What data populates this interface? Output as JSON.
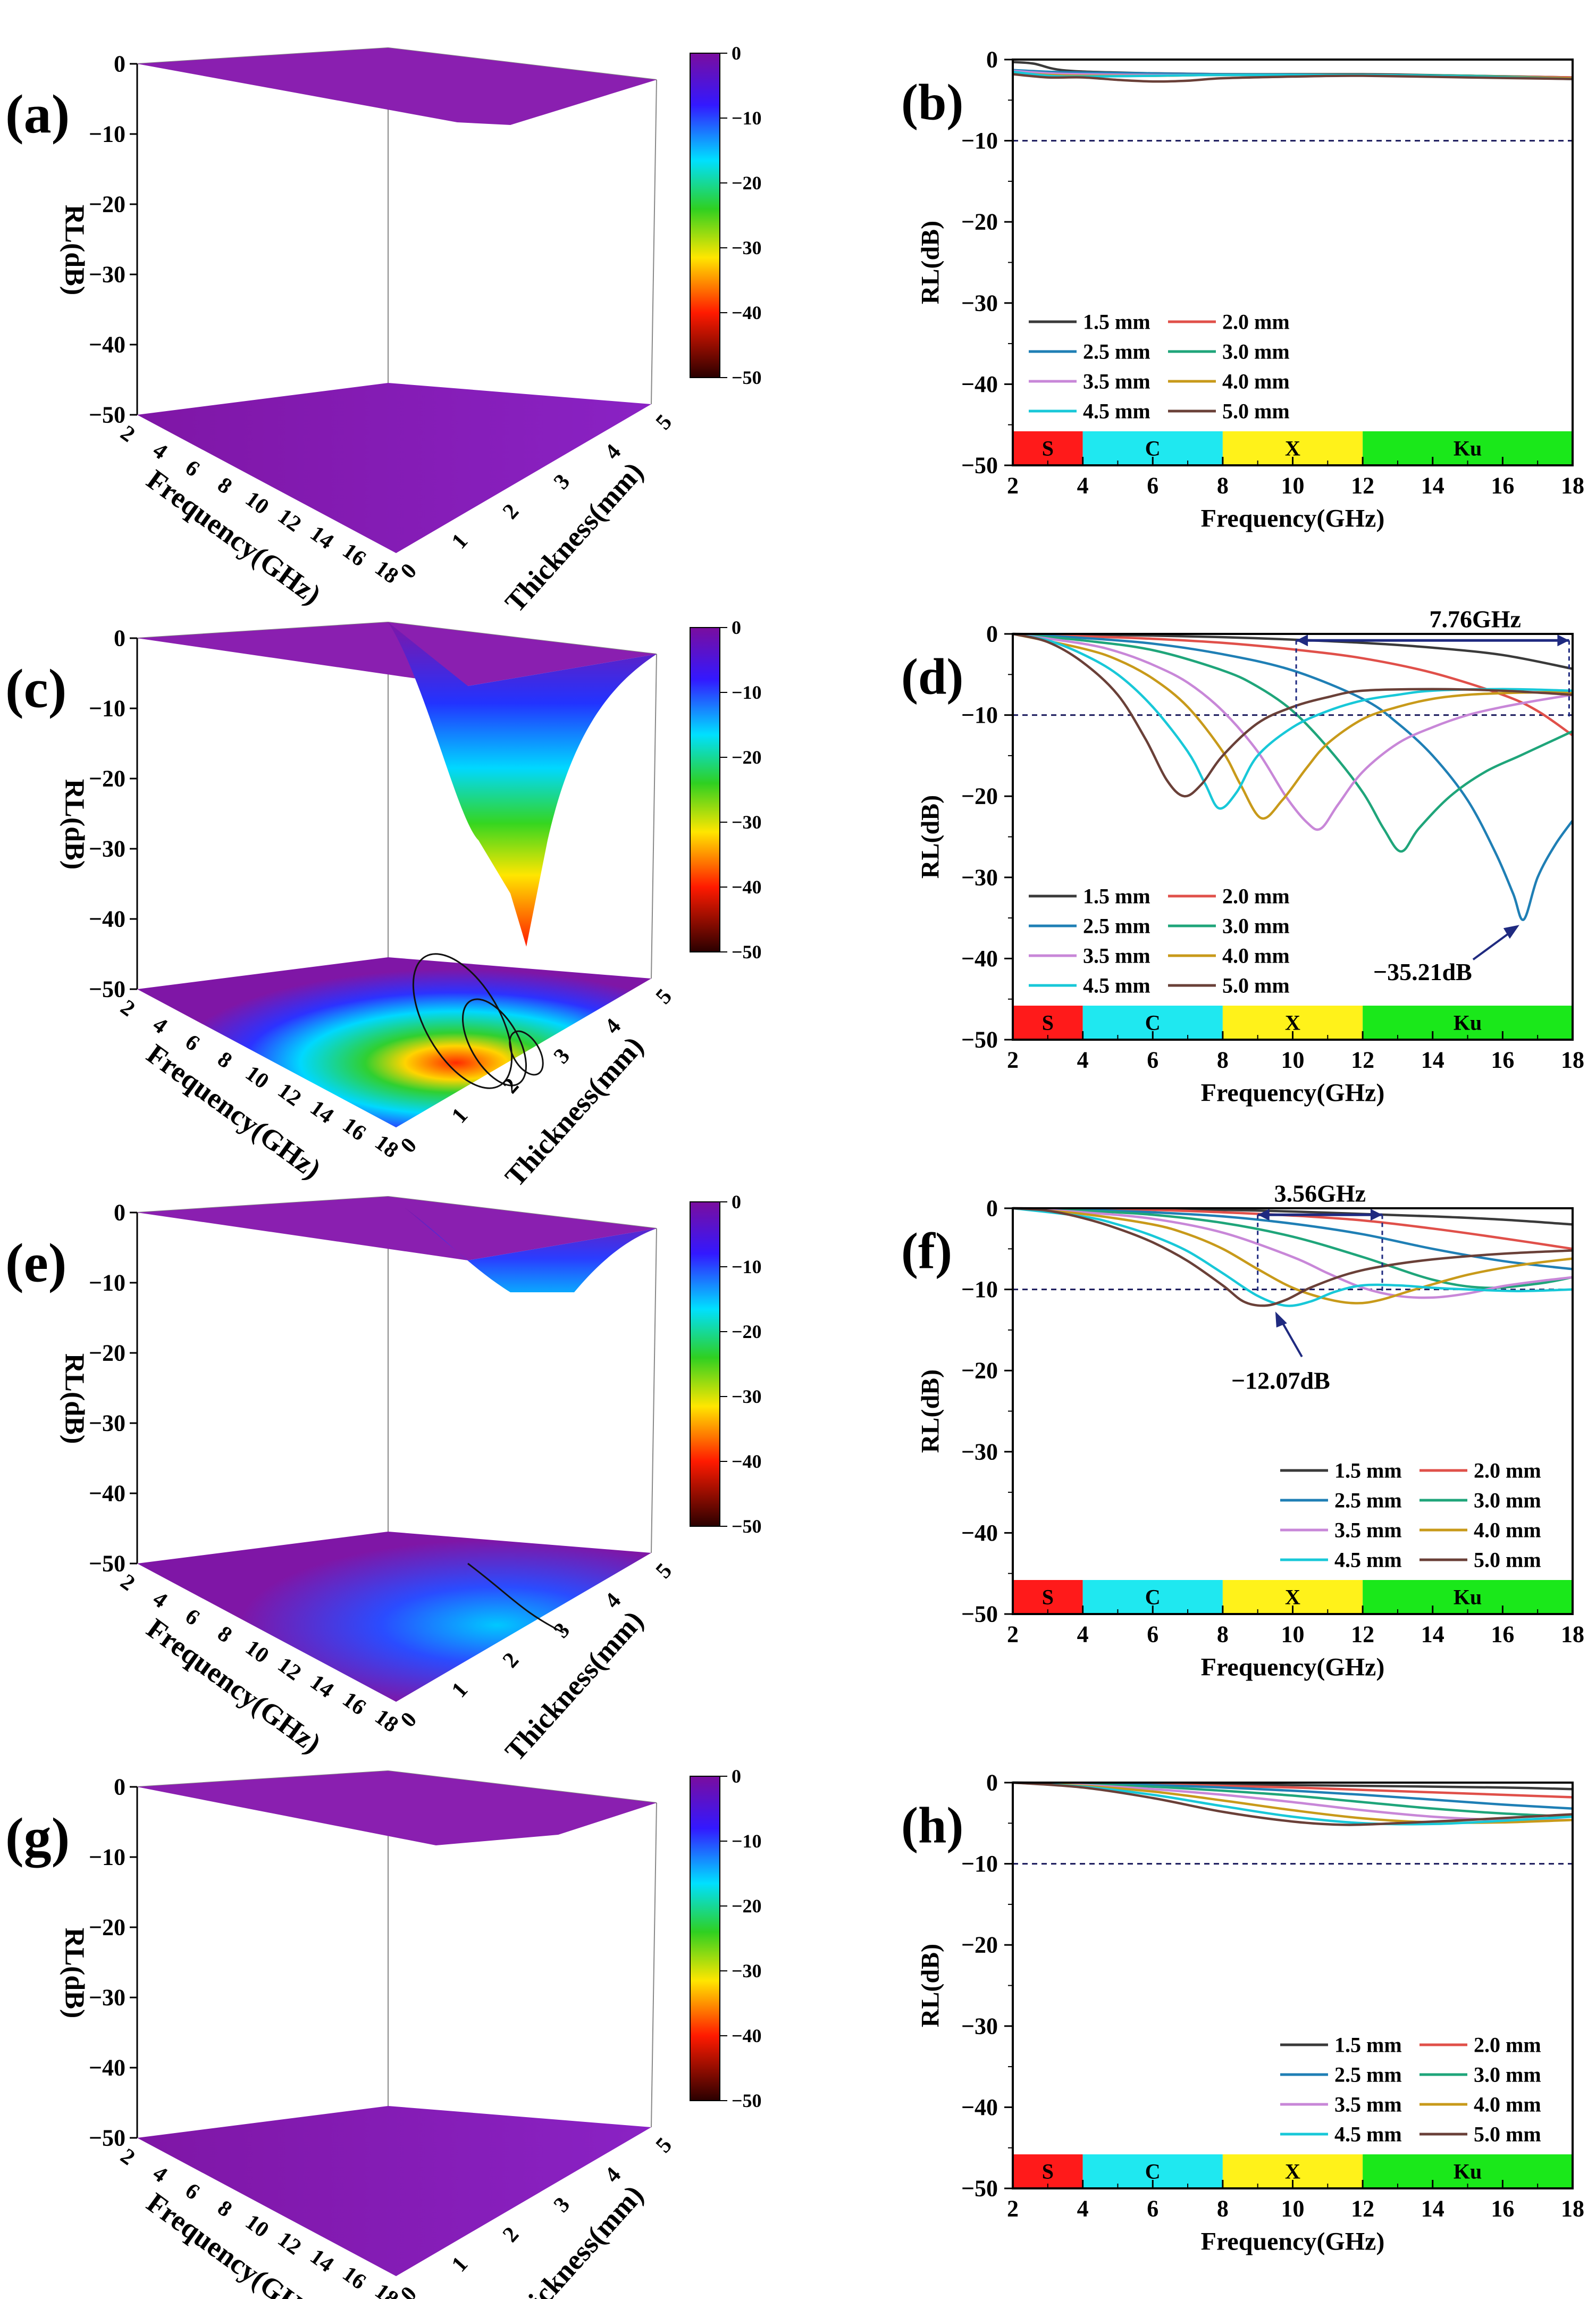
{
  "panel_labels": [
    "(a)",
    "(b)",
    "(c)",
    "(d)",
    "(e)",
    "(f)",
    "(g)",
    "(h)"
  ],
  "colorbar": {
    "ticks": [
      "0",
      "-10",
      "-20",
      "-30",
      "-40",
      "-50"
    ],
    "colors": [
      "#7a0d9e",
      "#3318ff",
      "#00e0ff",
      "#2fd021",
      "#ffe600",
      "#ff1a00",
      "#2a0000"
    ]
  },
  "surface_axes": {
    "zlabel": "RL(dB)",
    "zticks": [
      "0",
      "-10",
      "-20",
      "-30",
      "-40",
      "-50"
    ],
    "freq_label": "Frequency(GHz)",
    "freq_ticks": [
      "2",
      "4",
      "6",
      "8",
      "10",
      "12",
      "14",
      "16",
      "18"
    ],
    "thick_label": "Thickness(mm)",
    "thick_ticks": [
      "0",
      "1",
      "2",
      "3",
      "4",
      "5"
    ]
  },
  "line_axes": {
    "xlabel": "Frequency(GHz)",
    "ylabel": "RL(dB)",
    "xticks": [
      "2",
      "4",
      "6",
      "8",
      "10",
      "12",
      "14",
      "16",
      "18"
    ],
    "yticks": [
      "0",
      "-10",
      "-20",
      "-30",
      "-40",
      "-50"
    ],
    "bands": [
      {
        "label": "S",
        "from": 2,
        "to": 4,
        "color": "#ff1a1a"
      },
      {
        "label": "C",
        "from": 4,
        "to": 8,
        "color": "#1fe8f0"
      },
      {
        "label": "X",
        "from": 8,
        "to": 12,
        "color": "#fff21a"
      },
      {
        "label": "Ku",
        "from": 12,
        "to": 18,
        "color": "#1ae81a"
      }
    ]
  },
  "legend_labels": [
    "1.5 mm",
    "2.0 mm",
    "2.5 mm",
    "3.0 mm",
    "3.5 mm",
    "4.0 mm",
    "4.5 mm",
    "5.0 mm"
  ],
  "series_colors": [
    "#3a3a3a",
    "#e0504a",
    "#1f7fb5",
    "#1fa57a",
    "#c887d8",
    "#c89a1a",
    "#18c8d8",
    "#6a4038"
  ],
  "chart_data": [
    {
      "panel": "(b)",
      "type": "line",
      "xlabel": "Frequency(GHz)",
      "ylabel": "RL(dB)",
      "xlim": [
        2,
        18
      ],
      "ylim": [
        -50,
        0
      ],
      "reference_line": -10,
      "legend_position": "bottom-left",
      "series": [
        {
          "name": "1.5 mm",
          "x": [
            2,
            2.6,
            3.4,
            5,
            8,
            12,
            15,
            18
          ],
          "y": [
            -0.3,
            -0.5,
            -1.3,
            -1.6,
            -1.8,
            -1.8,
            -2.0,
            -2.2
          ]
        },
        {
          "name": "2.0 mm",
          "x": [
            2,
            3,
            4,
            6,
            8,
            12,
            15,
            18
          ],
          "y": [
            -1.5,
            -1.8,
            -1.8,
            -1.7,
            -1.8,
            -1.9,
            -2.0,
            -2.2
          ]
        },
        {
          "name": "2.5 mm",
          "x": [
            2,
            3,
            4,
            6,
            8,
            12,
            15,
            18
          ],
          "y": [
            -1.3,
            -1.5,
            -1.6,
            -1.7,
            -1.8,
            -1.9,
            -2.0,
            -2.3
          ]
        },
        {
          "name": "3.0 mm",
          "x": [
            2,
            3,
            4,
            6,
            8,
            12,
            15,
            18
          ],
          "y": [
            -1.6,
            -1.9,
            -2.0,
            -2.0,
            -1.9,
            -1.9,
            -2.0,
            -2.3
          ]
        },
        {
          "name": "3.5 mm",
          "x": [
            2,
            3,
            4,
            6,
            8,
            12,
            15,
            18
          ],
          "y": [
            -1.4,
            -1.7,
            -1.8,
            -1.9,
            -1.9,
            -1.9,
            -2.1,
            -2.3
          ]
        },
        {
          "name": "4.0 mm",
          "x": [
            2,
            3,
            4,
            6,
            8,
            12,
            15,
            18
          ],
          "y": [
            -1.6,
            -1.9,
            -2.0,
            -2.0,
            -1.9,
            -1.9,
            -2.1,
            -2.3
          ]
        },
        {
          "name": "4.5 mm",
          "x": [
            2,
            3,
            4,
            6,
            8,
            12,
            15,
            18
          ],
          "y": [
            -1.5,
            -2.0,
            -2.1,
            -2.0,
            -1.9,
            -1.9,
            -2.1,
            -2.4
          ]
        },
        {
          "name": "5.0 mm",
          "x": [
            2,
            3,
            4,
            5,
            6,
            7,
            8,
            10,
            12,
            15,
            18
          ],
          "y": [
            -1.8,
            -2.2,
            -2.2,
            -2.5,
            -2.7,
            -2.6,
            -2.3,
            -2.1,
            -2.0,
            -2.2,
            -2.4
          ]
        }
      ]
    },
    {
      "panel": "(d)",
      "type": "line",
      "xlabel": "Frequency(GHz)",
      "ylabel": "RL(dB)",
      "xlim": [
        2,
        18
      ],
      "ylim": [
        -50,
        0
      ],
      "reference_line": -10,
      "legend_position": "bottom-left",
      "annotations": [
        {
          "text": "7.76GHz"
        },
        {
          "text": "-35.21dB"
        }
      ],
      "bandwidth": {
        "from": 10.1,
        "to": 17.9,
        "label": "7.76GHz",
        "y": -0.8
      },
      "series": [
        {
          "name": "1.5 mm",
          "x": [
            2,
            4,
            6,
            8,
            10,
            12,
            14,
            16,
            18
          ],
          "y": [
            0,
            -0.1,
            -0.2,
            -0.4,
            -0.7,
            -1.1,
            -1.7,
            -2.6,
            -4.3
          ]
        },
        {
          "name": "2.0 mm",
          "x": [
            2,
            4,
            6,
            8,
            10,
            12,
            14,
            16,
            17,
            18
          ],
          "y": [
            0,
            -0.3,
            -0.6,
            -1.1,
            -1.9,
            -3.0,
            -4.8,
            -7.5,
            -9.5,
            -12.5
          ]
        },
        {
          "name": "2.5 mm",
          "x": [
            2,
            4,
            6,
            8,
            10,
            12,
            13,
            14,
            15,
            15.8,
            16.3,
            16.6,
            17,
            17.5,
            18
          ],
          "y": [
            0,
            -0.5,
            -1.2,
            -2.5,
            -4.5,
            -8.0,
            -11.0,
            -15.0,
            -20.5,
            -27.0,
            -32.0,
            -35.2,
            -30.0,
            -26.0,
            -23.0
          ]
        },
        {
          "name": "3.0 mm",
          "x": [
            2,
            4,
            6,
            8,
            9,
            10,
            11,
            12,
            12.6,
            13.1,
            13.6,
            14.5,
            15.5,
            16.5,
            17.5,
            18
          ],
          "y": [
            0,
            -0.8,
            -2.0,
            -4.5,
            -6.5,
            -9.5,
            -14.0,
            -19.5,
            -24.0,
            -26.8,
            -24.0,
            -20.0,
            -17.0,
            -15.0,
            -13.0,
            -12.0
          ]
        },
        {
          "name": "3.5 mm",
          "x": [
            2,
            4,
            5,
            6,
            7,
            8,
            9,
            9.8,
            10.4,
            10.8,
            11.3,
            12,
            13,
            14,
            15,
            16,
            17,
            18
          ],
          "y": [
            0,
            -1.2,
            -2.2,
            -3.8,
            -6.0,
            -9.5,
            -14.5,
            -20.0,
            -23.2,
            -24.0,
            -21.0,
            -17.0,
            -13.5,
            -11.5,
            -10.0,
            -9.0,
            -8.2,
            -7.5
          ]
        },
        {
          "name": "4.0 mm",
          "x": [
            2,
            4,
            5,
            6,
            7,
            8,
            8.5,
            9.1,
            9.7,
            10.4,
            11,
            12,
            13,
            14,
            15,
            16,
            17,
            18
          ],
          "y": [
            0,
            -1.8,
            -3.2,
            -5.5,
            -9.0,
            -14.5,
            -18.5,
            -22.7,
            -20.5,
            -16.5,
            -13.5,
            -10.5,
            -9.0,
            -8.0,
            -7.5,
            -7.3,
            -7.2,
            -7.2
          ]
        },
        {
          "name": "4.5 mm",
          "x": [
            2,
            3,
            4,
            5,
            6,
            7,
            7.5,
            7.9,
            8.4,
            9,
            10,
            11,
            12,
            13,
            14,
            16,
            18
          ],
          "y": [
            0,
            -0.8,
            -2.5,
            -5.0,
            -9.0,
            -14.5,
            -18.5,
            -21.5,
            -19.5,
            -15.0,
            -11.5,
            -9.5,
            -8.2,
            -7.5,
            -7.0,
            -6.8,
            -7.0
          ]
        },
        {
          "name": "5.0 mm",
          "x": [
            2,
            3,
            4,
            5,
            5.8,
            6.4,
            6.9,
            7.4,
            8,
            9,
            10,
            11,
            12,
            14,
            16,
            18
          ],
          "y": [
            0,
            -1.0,
            -3.5,
            -7.5,
            -13.0,
            -18.0,
            -20.0,
            -18.5,
            -15.0,
            -11.0,
            -9.0,
            -7.8,
            -7.0,
            -6.8,
            -7.0,
            -7.5
          ]
        }
      ]
    },
    {
      "panel": "(f)",
      "type": "line",
      "xlabel": "Frequency(GHz)",
      "ylabel": "RL(dB)",
      "xlim": [
        2,
        18
      ],
      "ylim": [
        -50,
        0
      ],
      "reference_line": -10,
      "legend_position": "bottom-right",
      "annotations": [
        {
          "text": "3.56GHz"
        },
        {
          "text": "-12.07dB"
        }
      ],
      "bandwidth": {
        "from": 9.0,
        "to": 12.56,
        "label": "3.56GHz",
        "y": -0.8
      },
      "series": [
        {
          "name": "1.5 mm",
          "x": [
            2,
            4,
            6,
            8,
            10,
            12,
            14,
            16,
            18
          ],
          "y": [
            0,
            -0.05,
            -0.1,
            -0.2,
            -0.4,
            -0.7,
            -1.0,
            -1.4,
            -2.0
          ]
        },
        {
          "name": "2.0 mm",
          "x": [
            2,
            4,
            6,
            8,
            10,
            12,
            14,
            16,
            18
          ],
          "y": [
            0,
            -0.1,
            -0.2,
            -0.5,
            -0.9,
            -1.5,
            -2.5,
            -3.7,
            -5.0
          ]
        },
        {
          "name": "2.5 mm",
          "x": [
            2,
            4,
            6,
            8,
            10,
            12,
            14,
            16,
            18
          ],
          "y": [
            0,
            -0.2,
            -0.5,
            -1.0,
            -1.9,
            -3.2,
            -5.0,
            -6.5,
            -7.5
          ]
        },
        {
          "name": "3.0 mm",
          "x": [
            2,
            4,
            6,
            8,
            10,
            12,
            14,
            15.5,
            17,
            18
          ],
          "y": [
            0,
            -0.3,
            -0.8,
            -1.8,
            -3.5,
            -6.0,
            -8.8,
            -9.8,
            -9.3,
            -8.5
          ]
        },
        {
          "name": "3.5 mm",
          "x": [
            2,
            4,
            6,
            8,
            10,
            11,
            12,
            13,
            14,
            15,
            16,
            17,
            18
          ],
          "y": [
            0,
            -0.5,
            -1.3,
            -3.0,
            -6.0,
            -8.0,
            -9.8,
            -10.8,
            -11.0,
            -10.5,
            -9.6,
            -9.0,
            -8.5
          ]
        },
        {
          "name": "4.0 mm",
          "x": [
            2,
            4,
            6,
            7,
            8,
            9,
            10,
            11,
            11.8,
            12.5,
            13.5,
            15,
            16.5,
            18
          ],
          "y": [
            0,
            -0.7,
            -2.0,
            -3.2,
            -5.0,
            -7.5,
            -9.8,
            -11.2,
            -11.7,
            -11.3,
            -10.0,
            -8.2,
            -7.0,
            -6.2
          ]
        },
        {
          "name": "4.5 mm",
          "x": [
            2,
            4,
            5,
            6,
            7,
            8,
            9,
            9.8,
            10.5,
            11.2,
            12,
            13,
            14,
            15,
            16.5,
            18
          ],
          "y": [
            0,
            -1.0,
            -2.0,
            -3.4,
            -5.3,
            -8.0,
            -10.8,
            -12.0,
            -11.5,
            -10.3,
            -9.5,
            -9.5,
            -9.8,
            -10.0,
            -10.2,
            -10.0
          ]
        },
        {
          "name": "5.0 mm",
          "x": [
            2,
            3,
            4,
            5,
            6,
            7,
            8,
            8.6,
            9.2,
            9.8,
            10.5,
            11.5,
            12.5,
            14,
            16,
            18
          ],
          "y": [
            0,
            -0.3,
            -1.2,
            -2.5,
            -4.2,
            -6.5,
            -9.5,
            -11.5,
            -12.0,
            -11.3,
            -9.8,
            -8.2,
            -7.2,
            -6.3,
            -5.6,
            -5.2
          ]
        }
      ]
    },
    {
      "panel": "(h)",
      "type": "line",
      "xlabel": "Frequency(GHz)",
      "ylabel": "RL(dB)",
      "xlim": [
        2,
        18
      ],
      "ylim": [
        -50,
        0
      ],
      "reference_line": -10,
      "legend_position": "bottom-right",
      "series": [
        {
          "name": "1.5 mm",
          "x": [
            2,
            4,
            6,
            8,
            10,
            12,
            14,
            16,
            18
          ],
          "y": [
            0,
            -0.05,
            -0.1,
            -0.2,
            -0.3,
            -0.4,
            -0.5,
            -0.6,
            -0.8
          ]
        },
        {
          "name": "2.0 mm",
          "x": [
            2,
            4,
            6,
            8,
            10,
            12,
            14,
            16,
            18
          ],
          "y": [
            0,
            -0.1,
            -0.2,
            -0.4,
            -0.6,
            -0.9,
            -1.2,
            -1.5,
            -1.8
          ]
        },
        {
          "name": "2.5 mm",
          "x": [
            2,
            4,
            6,
            8,
            10,
            12,
            14,
            16,
            18
          ],
          "y": [
            0,
            -0.15,
            -0.3,
            -0.6,
            -1.0,
            -1.5,
            -2.1,
            -2.7,
            -3.2
          ]
        },
        {
          "name": "3.0 mm",
          "x": [
            2,
            4,
            6,
            8,
            10,
            12,
            14,
            16,
            18
          ],
          "y": [
            0,
            -0.2,
            -0.5,
            -1.0,
            -1.6,
            -2.4,
            -3.2,
            -3.8,
            -4.2
          ]
        },
        {
          "name": "3.5 mm",
          "x": [
            2,
            4,
            6,
            8,
            10,
            12,
            14,
            16,
            18
          ],
          "y": [
            0,
            -0.3,
            -0.8,
            -1.5,
            -2.4,
            -3.4,
            -4.2,
            -4.6,
            -4.6
          ]
        },
        {
          "name": "4.0 mm",
          "x": [
            2,
            4,
            6,
            8,
            10,
            12,
            14,
            16,
            18
          ],
          "y": [
            0,
            -0.4,
            -1.1,
            -2.2,
            -3.4,
            -4.4,
            -4.9,
            -4.9,
            -4.6
          ]
        },
        {
          "name": "4.5 mm",
          "x": [
            2,
            4,
            6,
            8,
            10,
            12,
            14,
            16,
            18
          ],
          "y": [
            0,
            -0.5,
            -1.5,
            -2.9,
            -4.2,
            -5.0,
            -5.1,
            -4.7,
            -4.2
          ]
        },
        {
          "name": "5.0 mm",
          "x": [
            2,
            4,
            6,
            8,
            10,
            11.5,
            13,
            15,
            18
          ],
          "y": [
            0,
            -0.6,
            -1.9,
            -3.6,
            -4.8,
            -5.2,
            -5.0,
            -4.6,
            -3.9
          ]
        }
      ]
    }
  ]
}
